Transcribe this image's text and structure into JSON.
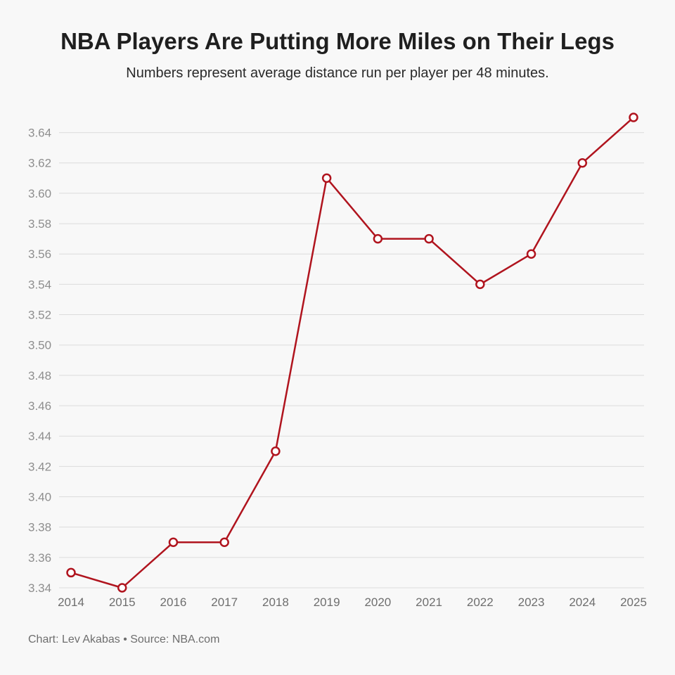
{
  "header": {
    "title": "NBA Players Are Putting More Miles on Their Legs",
    "subtitle": "Numbers represent average distance run per player per 48 minutes."
  },
  "footer": {
    "credit": "Chart: Lev Akabas • Source: NBA.com"
  },
  "colors": {
    "line": "#b0141e",
    "marker_fill": "#ffffff",
    "grid": "#dcdcdc",
    "background": "#f8f8f8"
  },
  "chart_data": {
    "type": "line",
    "title": "NBA Players Are Putting More Miles on Their Legs",
    "subtitle": "Numbers represent average distance run per player per 48 minutes.",
    "xlabel": "",
    "ylabel": "",
    "x": [
      "2014",
      "2015",
      "2016",
      "2017",
      "2018",
      "2019",
      "2020",
      "2021",
      "2022",
      "2023",
      "2024",
      "2025"
    ],
    "series": [
      {
        "values": [
          3.35,
          3.34,
          3.37,
          3.37,
          3.43,
          3.61,
          3.57,
          3.57,
          3.54,
          3.56,
          3.62,
          3.65
        ]
      }
    ],
    "ylim": [
      3.34,
      3.65
    ],
    "yticks": [
      "3.34",
      "3.36",
      "3.38",
      "3.40",
      "3.42",
      "3.44",
      "3.46",
      "3.48",
      "3.50",
      "3.52",
      "3.54",
      "3.56",
      "3.58",
      "3.60",
      "3.62",
      "3.64"
    ],
    "grid": true,
    "legend": "none",
    "markers": "hollow-circle"
  }
}
